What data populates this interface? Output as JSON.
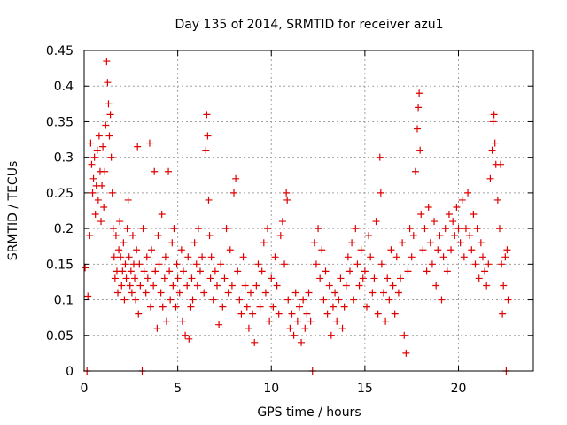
{
  "chart_data": {
    "type": "scatter",
    "title": "Day 135 of 2014, SRMTID for receiver azu1",
    "xlabel": "GPS time / hours",
    "ylabel": "SRMTID / TECUs",
    "xlim": [
      0,
      24
    ],
    "ylim": [
      0,
      0.45
    ],
    "x_ticks": [
      "0",
      "5",
      "10",
      "15",
      "20"
    ],
    "x_tick_values": [
      0,
      5,
      10,
      15,
      20
    ],
    "y_ticks": [
      "0",
      "0.05",
      "0.1",
      "0.15",
      "0.2",
      "0.25",
      "0.3",
      "0.35",
      "0.4",
      "0.45"
    ],
    "y_tick_values": [
      0,
      0.05,
      0.1,
      0.15,
      0.2,
      0.25,
      0.3,
      0.35,
      0.4,
      0.45
    ],
    "grid": true,
    "legend": "none",
    "marker": "+",
    "series": [
      {
        "name": "SRMTID",
        "color": "#e00000",
        "points": [
          [
            0.05,
            0.145
          ],
          [
            0.15,
            0.0
          ],
          [
            0.2,
            0.105
          ],
          [
            0.3,
            0.19
          ],
          [
            0.35,
            0.32
          ],
          [
            0.4,
            0.29
          ],
          [
            0.45,
            0.25
          ],
          [
            0.5,
            0.27
          ],
          [
            0.55,
            0.3
          ],
          [
            0.6,
            0.22
          ],
          [
            0.65,
            0.26
          ],
          [
            0.7,
            0.31
          ],
          [
            0.75,
            0.24
          ],
          [
            0.8,
            0.33
          ],
          [
            0.85,
            0.28
          ],
          [
            0.9,
            0.21
          ],
          [
            0.95,
            0.26
          ],
          [
            1.0,
            0.315
          ],
          [
            1.05,
            0.23
          ],
          [
            1.1,
            0.28
          ],
          [
            1.15,
            0.345
          ],
          [
            1.2,
            0.435
          ],
          [
            1.25,
            0.405
          ],
          [
            1.3,
            0.375
          ],
          [
            1.35,
            0.33
          ],
          [
            1.4,
            0.36
          ],
          [
            1.45,
            0.3
          ],
          [
            1.5,
            0.25
          ],
          [
            1.55,
            0.2
          ],
          [
            1.6,
            0.16
          ],
          [
            1.65,
            0.13
          ],
          [
            1.7,
            0.19
          ],
          [
            1.75,
            0.14
          ],
          [
            1.8,
            0.11
          ],
          [
            1.85,
            0.17
          ],
          [
            1.9,
            0.21
          ],
          [
            1.95,
            0.16
          ],
          [
            2.0,
            0.12
          ],
          [
            2.05,
            0.14
          ],
          [
            2.1,
            0.18
          ],
          [
            2.15,
            0.1
          ],
          [
            2.2,
            0.15
          ],
          [
            2.25,
            0.13
          ],
          [
            2.3,
            0.2
          ],
          [
            2.35,
            0.24
          ],
          [
            2.4,
            0.16
          ],
          [
            2.45,
            0.12
          ],
          [
            2.5,
            0.14
          ],
          [
            2.55,
            0.11
          ],
          [
            2.6,
            0.19
          ],
          [
            2.65,
            0.15
          ],
          [
            2.7,
            0.13
          ],
          [
            2.75,
            0.1
          ],
          [
            2.8,
            0.17
          ],
          [
            2.85,
            0.315
          ],
          [
            2.9,
            0.08
          ],
          [
            2.95,
            0.15
          ],
          [
            3.0,
            0.12
          ],
          [
            3.1,
            0.0
          ],
          [
            3.15,
            0.2
          ],
          [
            3.2,
            0.14
          ],
          [
            3.3,
            0.11
          ],
          [
            3.35,
            0.16
          ],
          [
            3.4,
            0.13
          ],
          [
            3.5,
            0.32
          ],
          [
            3.55,
            0.09
          ],
          [
            3.6,
            0.17
          ],
          [
            3.7,
            0.12
          ],
          [
            3.75,
            0.28
          ],
          [
            3.8,
            0.14
          ],
          [
            3.9,
            0.06
          ],
          [
            3.95,
            0.19
          ],
          [
            4.0,
            0.15
          ],
          [
            4.1,
            0.11
          ],
          [
            4.15,
            0.22
          ],
          [
            4.2,
            0.09
          ],
          [
            4.3,
            0.13
          ],
          [
            4.35,
            0.16
          ],
          [
            4.4,
            0.07
          ],
          [
            4.5,
            0.28
          ],
          [
            4.55,
            0.14
          ],
          [
            4.6,
            0.1
          ],
          [
            4.7,
            0.18
          ],
          [
            4.75,
            0.12
          ],
          [
            4.8,
            0.2
          ],
          [
            4.9,
            0.09
          ],
          [
            4.95,
            0.15
          ],
          [
            5.0,
            0.13
          ],
          [
            5.1,
            0.11
          ],
          [
            5.2,
            0.17
          ],
          [
            5.25,
            0.07
          ],
          [
            5.3,
            0.14
          ],
          [
            5.4,
            0.05
          ],
          [
            5.5,
            0.12
          ],
          [
            5.55,
            0.16
          ],
          [
            5.6,
            0.045
          ],
          [
            5.7,
            0.09
          ],
          [
            5.75,
            0.13
          ],
          [
            5.8,
            0.1
          ],
          [
            5.9,
            0.18
          ],
          [
            6.0,
            0.15
          ],
          [
            6.05,
            0.12
          ],
          [
            6.1,
            0.2
          ],
          [
            6.2,
            0.14
          ],
          [
            6.3,
            0.16
          ],
          [
            6.4,
            0.11
          ],
          [
            6.5,
            0.31
          ],
          [
            6.55,
            0.36
          ],
          [
            6.6,
            0.33
          ],
          [
            6.65,
            0.24
          ],
          [
            6.7,
            0.19
          ],
          [
            6.75,
            0.13
          ],
          [
            6.8,
            0.16
          ],
          [
            6.9,
            0.1
          ],
          [
            7.0,
            0.14
          ],
          [
            7.1,
            0.12
          ],
          [
            7.2,
            0.065
          ],
          [
            7.3,
            0.15
          ],
          [
            7.4,
            0.09
          ],
          [
            7.5,
            0.13
          ],
          [
            7.6,
            0.2
          ],
          [
            7.7,
            0.11
          ],
          [
            7.8,
            0.17
          ],
          [
            7.9,
            0.12
          ],
          [
            8.0,
            0.25
          ],
          [
            8.1,
            0.27
          ],
          [
            8.2,
            0.14
          ],
          [
            8.3,
            0.1
          ],
          [
            8.4,
            0.08
          ],
          [
            8.5,
            0.16
          ],
          [
            8.6,
            0.12
          ],
          [
            8.7,
            0.09
          ],
          [
            8.8,
            0.06
          ],
          [
            8.9,
            0.11
          ],
          [
            9.0,
            0.08
          ],
          [
            9.1,
            0.04
          ],
          [
            9.2,
            0.12
          ],
          [
            9.3,
            0.15
          ],
          [
            9.4,
            0.09
          ],
          [
            9.5,
            0.14
          ],
          [
            9.6,
            0.18
          ],
          [
            9.7,
            0.11
          ],
          [
            9.8,
            0.2
          ],
          [
            9.9,
            0.07
          ],
          [
            10.0,
            0.13
          ],
          [
            10.1,
            0.09
          ],
          [
            10.2,
            0.16
          ],
          [
            10.3,
            0.12
          ],
          [
            10.4,
            0.08
          ],
          [
            10.5,
            0.19
          ],
          [
            10.6,
            0.21
          ],
          [
            10.7,
            0.15
          ],
          [
            10.8,
            0.25
          ],
          [
            10.85,
            0.24
          ],
          [
            10.9,
            0.1
          ],
          [
            11.0,
            0.06
          ],
          [
            11.1,
            0.08
          ],
          [
            11.2,
            0.05
          ],
          [
            11.3,
            0.11
          ],
          [
            11.4,
            0.07
          ],
          [
            11.5,
            0.09
          ],
          [
            11.6,
            0.04
          ],
          [
            11.7,
            0.1
          ],
          [
            11.8,
            0.06
          ],
          [
            11.9,
            0.08
          ],
          [
            12.0,
            0.11
          ],
          [
            12.1,
            0.07
          ],
          [
            12.2,
            0.0
          ],
          [
            12.3,
            0.18
          ],
          [
            12.4,
            0.15
          ],
          [
            12.5,
            0.2
          ],
          [
            12.6,
            0.13
          ],
          [
            12.7,
            0.17
          ],
          [
            12.8,
            0.1
          ],
          [
            12.9,
            0.14
          ],
          [
            13.0,
            0.08
          ],
          [
            13.1,
            0.12
          ],
          [
            13.2,
            0.05
          ],
          [
            13.3,
            0.09
          ],
          [
            13.4,
            0.11
          ],
          [
            13.5,
            0.07
          ],
          [
            13.6,
            0.1
          ],
          [
            13.7,
            0.13
          ],
          [
            13.8,
            0.06
          ],
          [
            13.9,
            0.09
          ],
          [
            14.0,
            0.12
          ],
          [
            14.1,
            0.16
          ],
          [
            14.2,
            0.14
          ],
          [
            14.3,
            0.18
          ],
          [
            14.4,
            0.1
          ],
          [
            14.5,
            0.2
          ],
          [
            14.6,
            0.15
          ],
          [
            14.7,
            0.12
          ],
          [
            14.8,
            0.17
          ],
          [
            14.9,
            0.13
          ],
          [
            15.0,
            0.14
          ],
          [
            15.1,
            0.09
          ],
          [
            15.2,
            0.19
          ],
          [
            15.3,
            0.16
          ],
          [
            15.4,
            0.11
          ],
          [
            15.5,
            0.13
          ],
          [
            15.6,
            0.21
          ],
          [
            15.7,
            0.08
          ],
          [
            15.8,
            0.3
          ],
          [
            15.85,
            0.25
          ],
          [
            15.9,
            0.15
          ],
          [
            16.0,
            0.11
          ],
          [
            16.1,
            0.07
          ],
          [
            16.2,
            0.13
          ],
          [
            16.3,
            0.1
          ],
          [
            16.4,
            0.17
          ],
          [
            16.5,
            0.12
          ],
          [
            16.6,
            0.08
          ],
          [
            16.7,
            0.16
          ],
          [
            16.8,
            0.11
          ],
          [
            16.9,
            0.13
          ],
          [
            17.0,
            0.18
          ],
          [
            17.1,
            0.05
          ],
          [
            17.2,
            0.025
          ],
          [
            17.3,
            0.14
          ],
          [
            17.4,
            0.2
          ],
          [
            17.5,
            0.16
          ],
          [
            17.6,
            0.19
          ],
          [
            17.7,
            0.28
          ],
          [
            17.8,
            0.34
          ],
          [
            17.85,
            0.37
          ],
          [
            17.9,
            0.39
          ],
          [
            17.95,
            0.31
          ],
          [
            18.0,
            0.22
          ],
          [
            18.1,
            0.17
          ],
          [
            18.2,
            0.2
          ],
          [
            18.3,
            0.14
          ],
          [
            18.4,
            0.23
          ],
          [
            18.5,
            0.18
          ],
          [
            18.6,
            0.15
          ],
          [
            18.7,
            0.21
          ],
          [
            18.8,
            0.12
          ],
          [
            18.9,
            0.17
          ],
          [
            19.0,
            0.19
          ],
          [
            19.1,
            0.1
          ],
          [
            19.2,
            0.16
          ],
          [
            19.3,
            0.2
          ],
          [
            19.4,
            0.14
          ],
          [
            19.5,
            0.22
          ],
          [
            19.6,
            0.17
          ],
          [
            19.7,
            0.21
          ],
          [
            19.8,
            0.19
          ],
          [
            19.9,
            0.23
          ],
          [
            20.0,
            0.2
          ],
          [
            20.1,
            0.18
          ],
          [
            20.2,
            0.24
          ],
          [
            20.3,
            0.16
          ],
          [
            20.4,
            0.2
          ],
          [
            20.5,
            0.25
          ],
          [
            20.6,
            0.19
          ],
          [
            20.7,
            0.17
          ],
          [
            20.8,
            0.22
          ],
          [
            20.9,
            0.15
          ],
          [
            21.0,
            0.2
          ],
          [
            21.1,
            0.13
          ],
          [
            21.2,
            0.18
          ],
          [
            21.3,
            0.16
          ],
          [
            21.4,
            0.14
          ],
          [
            21.5,
            0.12
          ],
          [
            21.6,
            0.15
          ],
          [
            21.7,
            0.27
          ],
          [
            21.8,
            0.31
          ],
          [
            21.85,
            0.35
          ],
          [
            21.9,
            0.36
          ],
          [
            21.95,
            0.32
          ],
          [
            22.0,
            0.29
          ],
          [
            22.1,
            0.24
          ],
          [
            22.2,
            0.2
          ],
          [
            22.25,
            0.29
          ],
          [
            22.3,
            0.15
          ],
          [
            22.35,
            0.08
          ],
          [
            22.4,
            0.12
          ],
          [
            22.5,
            0.16
          ],
          [
            22.55,
            0.0
          ],
          [
            22.6,
            0.17
          ],
          [
            22.65,
            0.1
          ]
        ]
      }
    ]
  }
}
